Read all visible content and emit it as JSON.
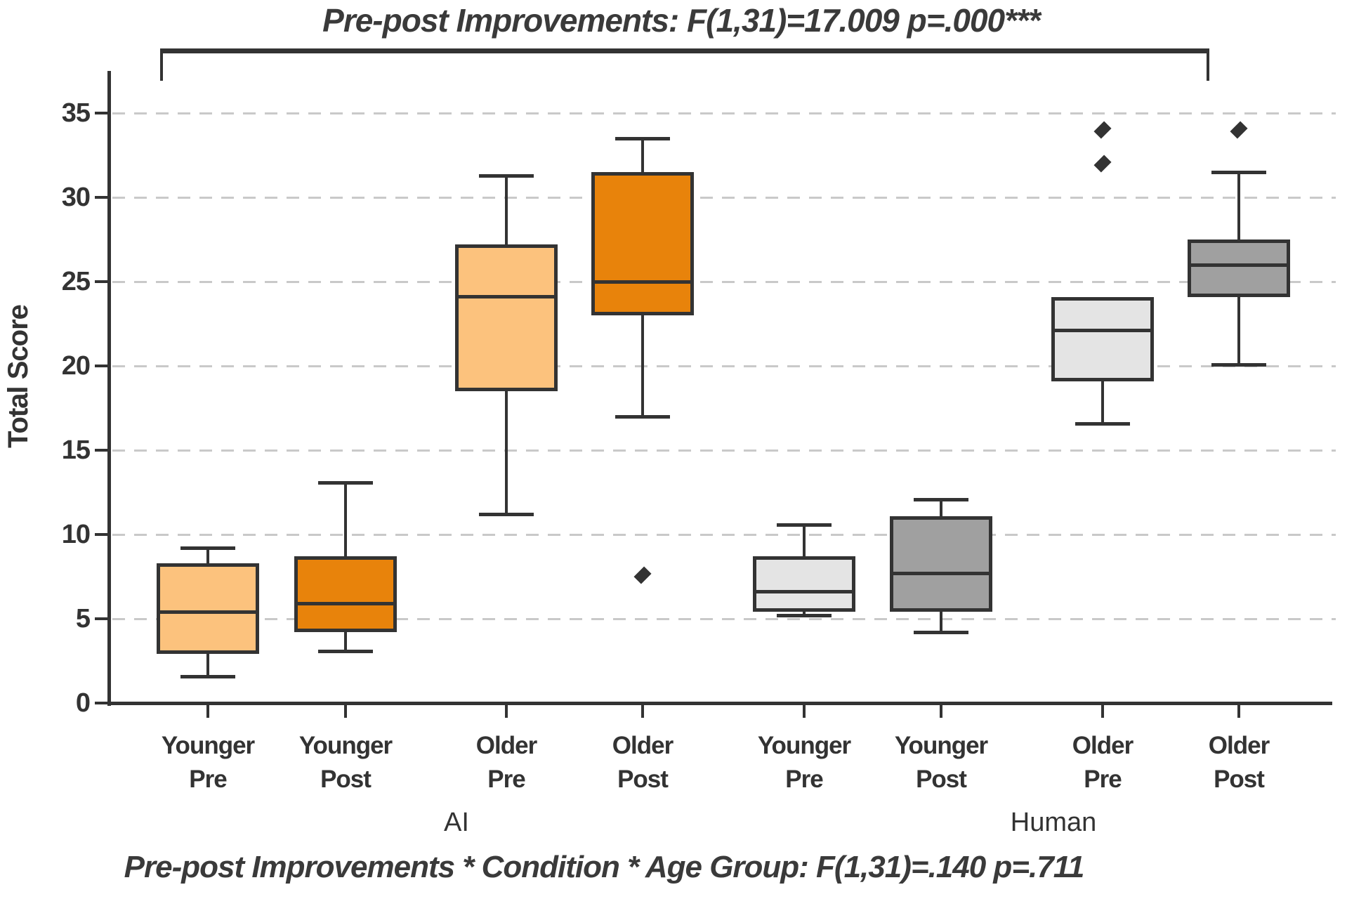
{
  "title": "Pre-post Improvements: F(1,31)=17.009 p=.000***",
  "subtitle": "Pre-post Improvements * Condition * Age Group: F(1,31)=.140 p=.711",
  "chart_data": {
    "type": "boxplot",
    "title": "Pre-post Improvements: F(1,31)=17.009 p=.000***",
    "bottom_annotation": "Pre-post Improvements * Condition * Age Group: F(1,31)=.140 p=.711",
    "ylabel": "Total Score",
    "xlabel": "",
    "ylim": [
      0,
      37.5
    ],
    "y_ticks": [
      0,
      5,
      10,
      15,
      20,
      25,
      30,
      35
    ],
    "grid": "horizontal dashed gridlines at each y tick",
    "legend": "none",
    "significance_bracket": "spans all eight boxes under the title",
    "outlier_marker": "filled diamond",
    "groups": [
      {
        "label": "AI"
      },
      {
        "label": "Human"
      }
    ],
    "colors": {
      "ai_pre_fill": "#FCC27D",
      "ai_post_fill": "#E8830B",
      "human_pre_fill": "#E4E4E4",
      "human_post_fill": "#A0A0A0",
      "line": "#333333",
      "grid": "#C9C9C9"
    },
    "boxes": [
      {
        "group": "AI",
        "label": [
          "Younger",
          "Pre"
        ],
        "fill": "#FCC27D",
        "whisker_low": 1.6,
        "q1": 2.9,
        "median": 5.4,
        "q3": 8.3,
        "whisker_high": 9.2,
        "outliers": []
      },
      {
        "group": "AI",
        "label": [
          "Younger",
          "Post"
        ],
        "fill": "#E8830B",
        "whisker_low": 3.1,
        "q1": 4.2,
        "median": 5.9,
        "q3": 8.7,
        "whisker_high": 13.1,
        "outliers": []
      },
      {
        "group": "AI",
        "label": [
          "Older",
          "Pre"
        ],
        "fill": "#FCC27D",
        "whisker_low": 11.2,
        "q1": 18.5,
        "median": 24.1,
        "q3": 27.2,
        "whisker_high": 31.3,
        "outliers": []
      },
      {
        "group": "AI",
        "label": [
          "Older",
          "Post"
        ],
        "fill": "#E8830B",
        "whisker_low": 17.0,
        "q1": 23.0,
        "median": 25.0,
        "q3": 31.5,
        "whisker_high": 33.5,
        "outliers": [
          7.6
        ]
      },
      {
        "group": "Human",
        "label": [
          "Younger",
          "Pre"
        ],
        "fill": "#E4E4E4",
        "whisker_low": 5.2,
        "q1": 5.4,
        "median": 6.6,
        "q3": 8.7,
        "whisker_high": 10.6,
        "outliers": []
      },
      {
        "group": "Human",
        "label": [
          "Younger",
          "Post"
        ],
        "fill": "#A0A0A0",
        "whisker_low": 4.2,
        "q1": 5.4,
        "median": 7.7,
        "q3": 11.1,
        "whisker_high": 12.1,
        "outliers": []
      },
      {
        "group": "Human",
        "label": [
          "Older",
          "Pre"
        ],
        "fill": "#E4E4E4",
        "whisker_low": 16.6,
        "q1": 19.1,
        "median": 22.1,
        "q3": 24.1,
        "whisker_high": 24.1,
        "outliers": [
          32,
          34
        ]
      },
      {
        "group": "Human",
        "label": [
          "Older",
          "Post"
        ],
        "fill": "#A0A0A0",
        "whisker_low": 20.1,
        "q1": 24.1,
        "median": 26.0,
        "q3": 27.5,
        "whisker_high": 31.5,
        "outliers": [
          34
        ]
      }
    ]
  }
}
